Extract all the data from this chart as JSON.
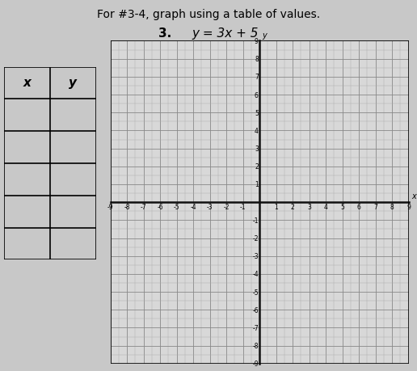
{
  "title_line1": "For #3-4, graph using a table of values.",
  "title_line2_num": "3.",
  "title_line2_eq": "y = 3x + 5",
  "background_color": "#c8c8c8",
  "graph_bg_color": "#d8d8d8",
  "grid_color_major": "#888888",
  "grid_color_minor": "#aaaaaa",
  "axis_color": "#111111",
  "table_headers": [
    "x",
    "y"
  ],
  "table_rows": 5,
  "x_min": -9,
  "x_max": 9,
  "y_min": -9,
  "y_max": 9,
  "font_size_title1": 10,
  "font_size_title2": 11,
  "tick_fontsize": 5.5
}
